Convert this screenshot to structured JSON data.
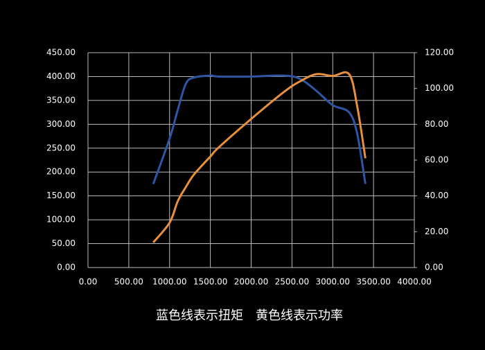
{
  "chart_data": {
    "type": "line",
    "caption": "蓝色线表示扭矩　黄色线表示功率",
    "x": [
      800,
      1000,
      1100,
      1200,
      1300,
      1500,
      1600,
      2000,
      2400,
      2600,
      2800,
      3000,
      3200,
      3300,
      3400
    ],
    "series": [
      {
        "name": "扭矩",
        "color": "#2f55a4",
        "values": [
          175,
          270,
          330,
          385,
          398,
          402,
          400,
          400,
          402,
          395,
          370,
          340,
          325,
          280,
          175
        ]
      },
      {
        "name": "功率",
        "color": "#e8903c",
        "axis": "y2",
        "values": [
          14,
          25,
          37,
          45,
          52,
          62,
          67,
          83,
          98,
          104,
          108,
          107,
          108,
          90,
          61
        ]
      }
    ],
    "xlim": [
      0,
      4000
    ],
    "xticks": [
      {
        "value": 0,
        "label": "0.00"
      },
      {
        "value": 500,
        "label": "500.00"
      },
      {
        "value": 1000,
        "label": "1000.00"
      },
      {
        "value": 1500,
        "label": "1500.00"
      },
      {
        "value": 2000,
        "label": "2000.00"
      },
      {
        "value": 2500,
        "label": "2500.00"
      },
      {
        "value": 3000,
        "label": "3000.00"
      },
      {
        "value": 3500,
        "label": "3500.00"
      },
      {
        "value": 4000,
        "label": "4000.00"
      }
    ],
    "ylim": [
      0,
      450
    ],
    "yticks": [
      {
        "value": 0,
        "label": "0.00"
      },
      {
        "value": 50,
        "label": "50.00"
      },
      {
        "value": 100,
        "label": "100.00"
      },
      {
        "value": 150,
        "label": "150.00"
      },
      {
        "value": 200,
        "label": "200.00"
      },
      {
        "value": 250,
        "label": "250.00"
      },
      {
        "value": 300,
        "label": "300.00"
      },
      {
        "value": 350,
        "label": "350.00"
      },
      {
        "value": 400,
        "label": "400.00"
      },
      {
        "value": 450,
        "label": "450.00"
      }
    ],
    "y2lim": [
      0,
      120
    ],
    "y2ticks": [
      {
        "value": 0,
        "label": "0.00"
      },
      {
        "value": 20,
        "label": "20.00"
      },
      {
        "value": 40,
        "label": "40.00"
      },
      {
        "value": 60,
        "label": "60.00"
      },
      {
        "value": 80,
        "label": "80.00"
      },
      {
        "value": 100,
        "label": "100.00"
      },
      {
        "value": 120,
        "label": "120.00"
      }
    ],
    "grid": true
  }
}
